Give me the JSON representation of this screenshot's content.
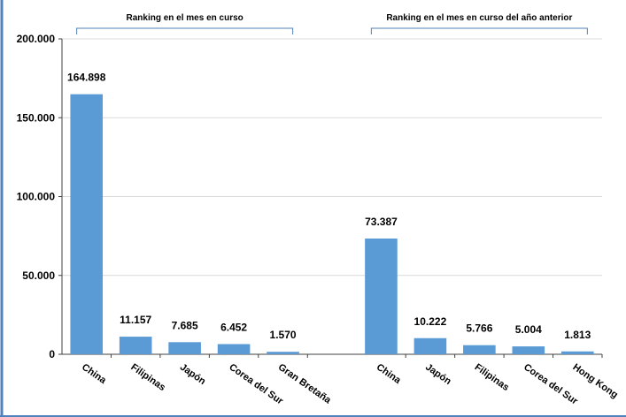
{
  "chart_data": {
    "type": "bar",
    "ylim": [
      0,
      200000
    ],
    "yticks": [
      0,
      50000,
      100000,
      150000,
      200000
    ],
    "ytick_labels": [
      "0",
      "50.000",
      "100.000",
      "150.000",
      "200.000"
    ],
    "grid": true,
    "bar_color": "#5b9bd5",
    "frame_color": "#4f81bd",
    "groups": [
      {
        "label": "Ranking en el mes en curso",
        "categories": [
          "China",
          "Filipinas",
          "Japón",
          "Corea del Sur",
          "Gran Bretaña"
        ],
        "values": [
          164898,
          11157,
          7685,
          6452,
          1570
        ],
        "value_labels": [
          "164.898",
          "11.157",
          "7.685",
          "6.452",
          "1.570"
        ]
      },
      {
        "label": "Ranking en el mes en curso del año anterior",
        "categories": [
          "China",
          "Japón",
          "Filipinas",
          "Corea del Sur",
          "Hong Kong"
        ],
        "values": [
          73387,
          10222,
          5766,
          5004,
          1813
        ],
        "value_labels": [
          "73.387",
          "10.222",
          "5.766",
          "5.004",
          "1.813"
        ]
      }
    ]
  }
}
